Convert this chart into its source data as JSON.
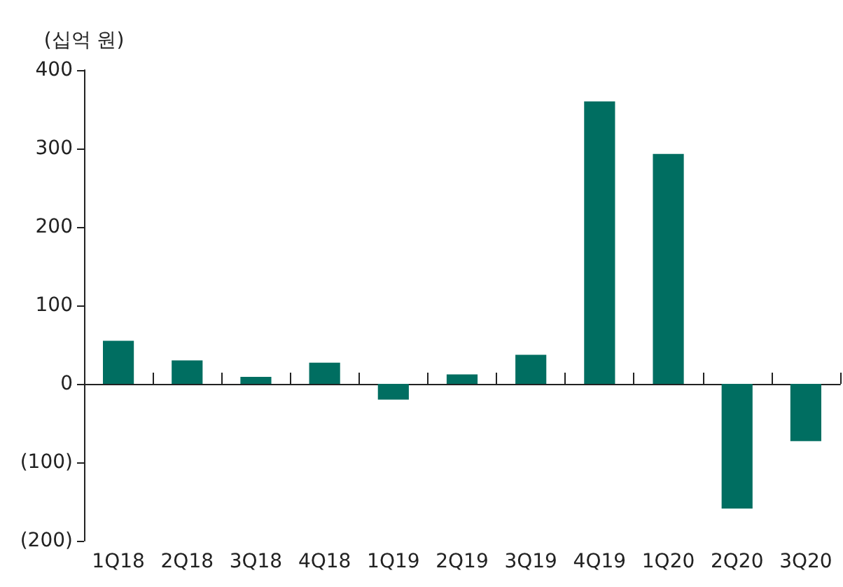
{
  "chart_data": {
    "type": "bar",
    "ylabel": "(십억 원)",
    "categories": [
      "1Q18",
      "2Q18",
      "3Q18",
      "4Q18",
      "1Q19",
      "2Q19",
      "3Q19",
      "4Q19",
      "1Q20",
      "2Q20",
      "3Q20"
    ],
    "values": [
      55,
      30,
      9,
      27,
      -20,
      12,
      37,
      360,
      293,
      -159,
      -73
    ],
    "color": "#006e61",
    "ylim": [
      -200,
      400
    ],
    "yticks": [
      {
        "value": -200,
        "label": "(200)"
      },
      {
        "value": -100,
        "label": "(100)"
      },
      0,
      100,
      200,
      300,
      400
    ]
  }
}
